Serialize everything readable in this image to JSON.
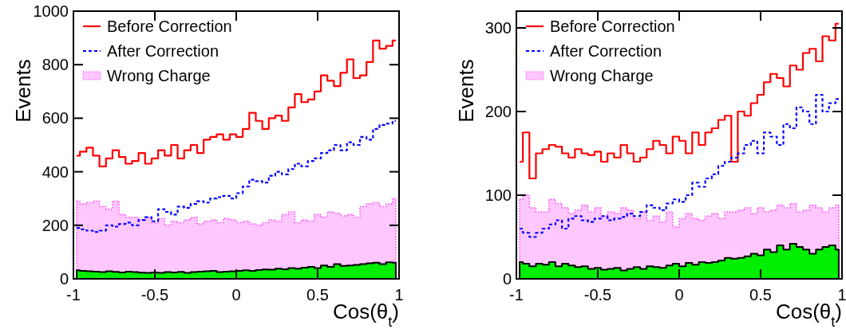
{
  "chart_data": [
    {
      "type": "step",
      "xlabel": "Cos(θ$_{t}$)",
      "ylabel": "Events",
      "x": [
        -0.98,
        -0.94,
        -0.9,
        -0.86,
        -0.82,
        -0.78,
        -0.74,
        -0.7,
        -0.66,
        -0.62,
        -0.58,
        -0.54,
        -0.5,
        -0.46,
        -0.42,
        -0.38,
        -0.34,
        -0.3,
        -0.26,
        -0.22,
        -0.18,
        -0.14,
        -0.1,
        -0.06,
        -0.02,
        0.02,
        0.06,
        0.1,
        0.14,
        0.18,
        0.22,
        0.26,
        0.3,
        0.34,
        0.38,
        0.42,
        0.46,
        0.5,
        0.54,
        0.58,
        0.62,
        0.66,
        0.7,
        0.74,
        0.78,
        0.82,
        0.86,
        0.9,
        0.94,
        0.98
      ],
      "xlim": [
        -1,
        1
      ],
      "xticks": [
        -1,
        -0.5,
        0,
        0.5,
        1
      ],
      "ylim": [
        0,
        1000
      ],
      "yticks": [
        0,
        200,
        400,
        600,
        800,
        1000
      ],
      "legend": "top left",
      "series": [
        {
          "name": "Wrong Charge",
          "type": "area",
          "color": "#ff44ff",
          "line_style": "dotted",
          "values": [
            290,
            280,
            285,
            290,
            270,
            260,
            290,
            240,
            230,
            230,
            220,
            230,
            210,
            225,
            200,
            215,
            210,
            220,
            230,
            205,
            215,
            220,
            210,
            225,
            220,
            210,
            215,
            205,
            200,
            210,
            220,
            215,
            240,
            250,
            210,
            220,
            215,
            240,
            230,
            250,
            245,
            235,
            240,
            230,
            270,
            280,
            285,
            270,
            280,
            300
          ]
        },
        {
          "type": "area",
          "color": "#00ee00",
          "line_style": "solid",
          "values": [
            32,
            30,
            28,
            27,
            25,
            28,
            26,
            24,
            27,
            25,
            23,
            22,
            24,
            22,
            25,
            24,
            26,
            22,
            25,
            27,
            28,
            30,
            25,
            27,
            28,
            30,
            32,
            30,
            33,
            35,
            34,
            38,
            36,
            40,
            38,
            42,
            45,
            40,
            50,
            45,
            55,
            48,
            50,
            52,
            55,
            58,
            60,
            55,
            62,
            60
          ]
        },
        {
          "name": "Before Correction",
          "color": "#ff0000",
          "line_style": "solid",
          "values": [
            460,
            475,
            490,
            460,
            420,
            450,
            480,
            455,
            430,
            440,
            470,
            430,
            450,
            480,
            460,
            500,
            450,
            480,
            500,
            470,
            520,
            530,
            540,
            520,
            540,
            530,
            560,
            620,
            590,
            560,
            600,
            610,
            590,
            640,
            690,
            660,
            670,
            700,
            760,
            740,
            720,
            770,
            820,
            750,
            760,
            810,
            890,
            860,
            870,
            890
          ]
        },
        {
          "name": "After Correction",
          "color": "#0000ff",
          "line_style": "dashed",
          "values": [
            190,
            185,
            180,
            175,
            180,
            200,
            195,
            205,
            210,
            200,
            220,
            230,
            215,
            260,
            250,
            240,
            270,
            265,
            280,
            290,
            285,
            300,
            305,
            310,
            300,
            320,
            345,
            370,
            365,
            360,
            385,
            400,
            390,
            410,
            430,
            420,
            440,
            450,
            470,
            480,
            500,
            480,
            510,
            500,
            530,
            520,
            560,
            575,
            580,
            590
          ]
        }
      ]
    },
    {
      "type": "step",
      "xlabel": "Cos(θ$_{t}$)",
      "ylabel": "Events",
      "x": [
        -0.98,
        -0.94,
        -0.9,
        -0.86,
        -0.82,
        -0.78,
        -0.74,
        -0.7,
        -0.66,
        -0.62,
        -0.58,
        -0.54,
        -0.5,
        -0.46,
        -0.42,
        -0.38,
        -0.34,
        -0.3,
        -0.26,
        -0.22,
        -0.18,
        -0.14,
        -0.1,
        -0.06,
        -0.02,
        0.02,
        0.06,
        0.1,
        0.14,
        0.18,
        0.22,
        0.26,
        0.3,
        0.34,
        0.38,
        0.42,
        0.46,
        0.5,
        0.54,
        0.58,
        0.62,
        0.66,
        0.7,
        0.74,
        0.78,
        0.82,
        0.86,
        0.9,
        0.94,
        0.98
      ],
      "xlim": [
        -1,
        1
      ],
      "xticks": [
        -1,
        -0.5,
        0,
        0.5,
        1
      ],
      "ylim": [
        0,
        320
      ],
      "yticks": [
        0,
        100,
        200,
        300
      ],
      "legend": "top left",
      "series": [
        {
          "name": "Wrong Charge",
          "type": "area",
          "color": "#ff44ff",
          "line_style": "dotted",
          "values": [
            95,
            100,
            85,
            80,
            80,
            95,
            90,
            85,
            78,
            82,
            88,
            80,
            85,
            75,
            80,
            78,
            85,
            82,
            72,
            80,
            70,
            75,
            68,
            80,
            62,
            72,
            78,
            72,
            70,
            75,
            78,
            72,
            80,
            80,
            82,
            85,
            78,
            85,
            80,
            82,
            88,
            85,
            90,
            80,
            82,
            88,
            85,
            80,
            85,
            88
          ]
        },
        {
          "type": "area",
          "color": "#00ee00",
          "line_style": "solid",
          "values": [
            20,
            18,
            15,
            18,
            17,
            20,
            15,
            18,
            16,
            14,
            15,
            12,
            13,
            11,
            12,
            13,
            10,
            12,
            14,
            12,
            15,
            14,
            13,
            16,
            18,
            15,
            19,
            17,
            20,
            19,
            20,
            22,
            25,
            24,
            25,
            27,
            30,
            28,
            35,
            32,
            40,
            35,
            42,
            38,
            35,
            30,
            35,
            38,
            40,
            35
          ]
        },
        {
          "name": "Before Correction",
          "color": "#ff0000",
          "line_style": "solid",
          "values": [
            140,
            175,
            120,
            150,
            155,
            160,
            158,
            150,
            145,
            155,
            150,
            148,
            152,
            140,
            150,
            145,
            160,
            150,
            140,
            145,
            155,
            165,
            160,
            150,
            170,
            165,
            150,
            175,
            160,
            175,
            180,
            190,
            195,
            140,
            200,
            195,
            210,
            220,
            235,
            245,
            240,
            230,
            255,
            250,
            270,
            275,
            260,
            290,
            285,
            305
          ]
        },
        {
          "name": "After Correction",
          "color": "#0000ff",
          "line_style": "dashed",
          "values": [
            60,
            55,
            50,
            55,
            60,
            65,
            70,
            60,
            72,
            75,
            70,
            68,
            72,
            75,
            70,
            72,
            74,
            78,
            75,
            80,
            88,
            85,
            82,
            90,
            95,
            92,
            100,
            115,
            110,
            120,
            125,
            135,
            140,
            145,
            150,
            160,
            165,
            150,
            175,
            170,
            160,
            185,
            180,
            205,
            200,
            185,
            220,
            200,
            210,
            215
          ]
        }
      ]
    }
  ]
}
